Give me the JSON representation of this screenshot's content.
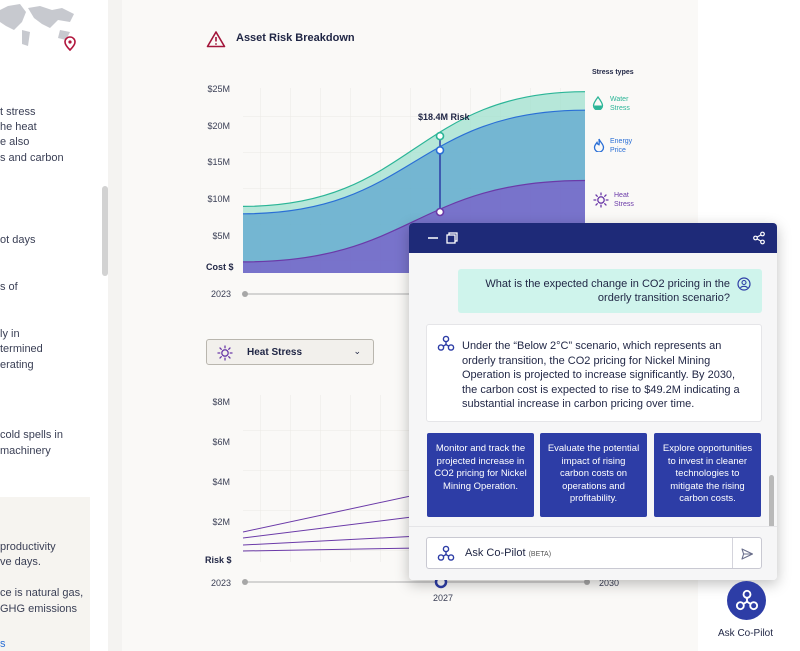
{
  "left_panel": {
    "lines": [
      "t stress",
      "he heat",
      "e also",
      "s and carbon",
      "ot days",
      "s of",
      "ly in",
      "termined",
      "erating",
      "cold spells in",
      "machinery",
      "productivity",
      "ve days.",
      "ce is natural gas,",
      "GHG emissions",
      "s"
    ]
  },
  "chart": {
    "title": "Asset Risk Breakdown",
    "y_ticks": [
      "$25M",
      "$20M",
      "$15M",
      "$10M",
      "$5M"
    ],
    "y_axis_label": "Cost $",
    "x_start": "2023",
    "callout": "$18.4M Risk",
    "legend_title": "Stress types",
    "legend": [
      {
        "label": "Water\nStress",
        "icon": "water-drop-icon",
        "color": "#2bb597"
      },
      {
        "label": "Energy\nPrice",
        "icon": "flame-icon",
        "color": "#2a6fd6"
      },
      {
        "label": "Heat\nStress",
        "icon": "sun-icon",
        "color": "#6b3aa8"
      }
    ]
  },
  "chart_data": {
    "type": "area",
    "title": "Asset Risk Breakdown",
    "xlabel": "",
    "ylabel": "Cost $",
    "ylim": [
      0,
      25
    ],
    "x": [
      2023,
      2030
    ],
    "series": [
      {
        "name": "Heat Stress",
        "values": [
          1.5,
          12.5
        ]
      },
      {
        "name": "Energy Price",
        "values": [
          8.0,
          22.0
        ]
      },
      {
        "name": "Water Stress",
        "values": [
          9.0,
          24.5
        ]
      }
    ],
    "annotations": [
      "$18.4M Risk"
    ],
    "legend": "right"
  },
  "dropdown": {
    "label": "Heat Stress",
    "icon": "sun-icon",
    "chevron": "⌄"
  },
  "chart2": {
    "y_ticks": [
      "$8M",
      "$6M",
      "$4M",
      "$2M"
    ],
    "y_axis_label": "Risk $",
    "x_start": "2023",
    "x_mid": "2027",
    "x_end": "2030"
  },
  "copilot": {
    "question": "What is the expected change in CO2 pricing in the orderly transition scenario?",
    "answer": "Under the “Below 2°C” scenario, which represents an orderly transition, the CO2 pricing for Nickel Mining Operation is projected to increase significantly. By 2030, the carbon cost is expected to rise to $49.2M indicating a substantial increase in carbon pricing over time.",
    "suggestions": [
      "Monitor and track the projected increase in CO2 pricing for Nickel Mining Operation.",
      "Evaluate the potential impact of rising carbon costs on operations and profitability.",
      "Explore opportunities to invest in cleaner technologies to mitigate the rising carbon costs."
    ],
    "input_placeholder": "Ask Co-Pilot",
    "input_badge": "(BETA)"
  },
  "fab_label": "Ask Co-Pilot",
  "colors": {
    "navy": "#1e2a78",
    "accent": "#2d3da6",
    "mint": "#cff4ec",
    "warn": "#a3153a"
  }
}
